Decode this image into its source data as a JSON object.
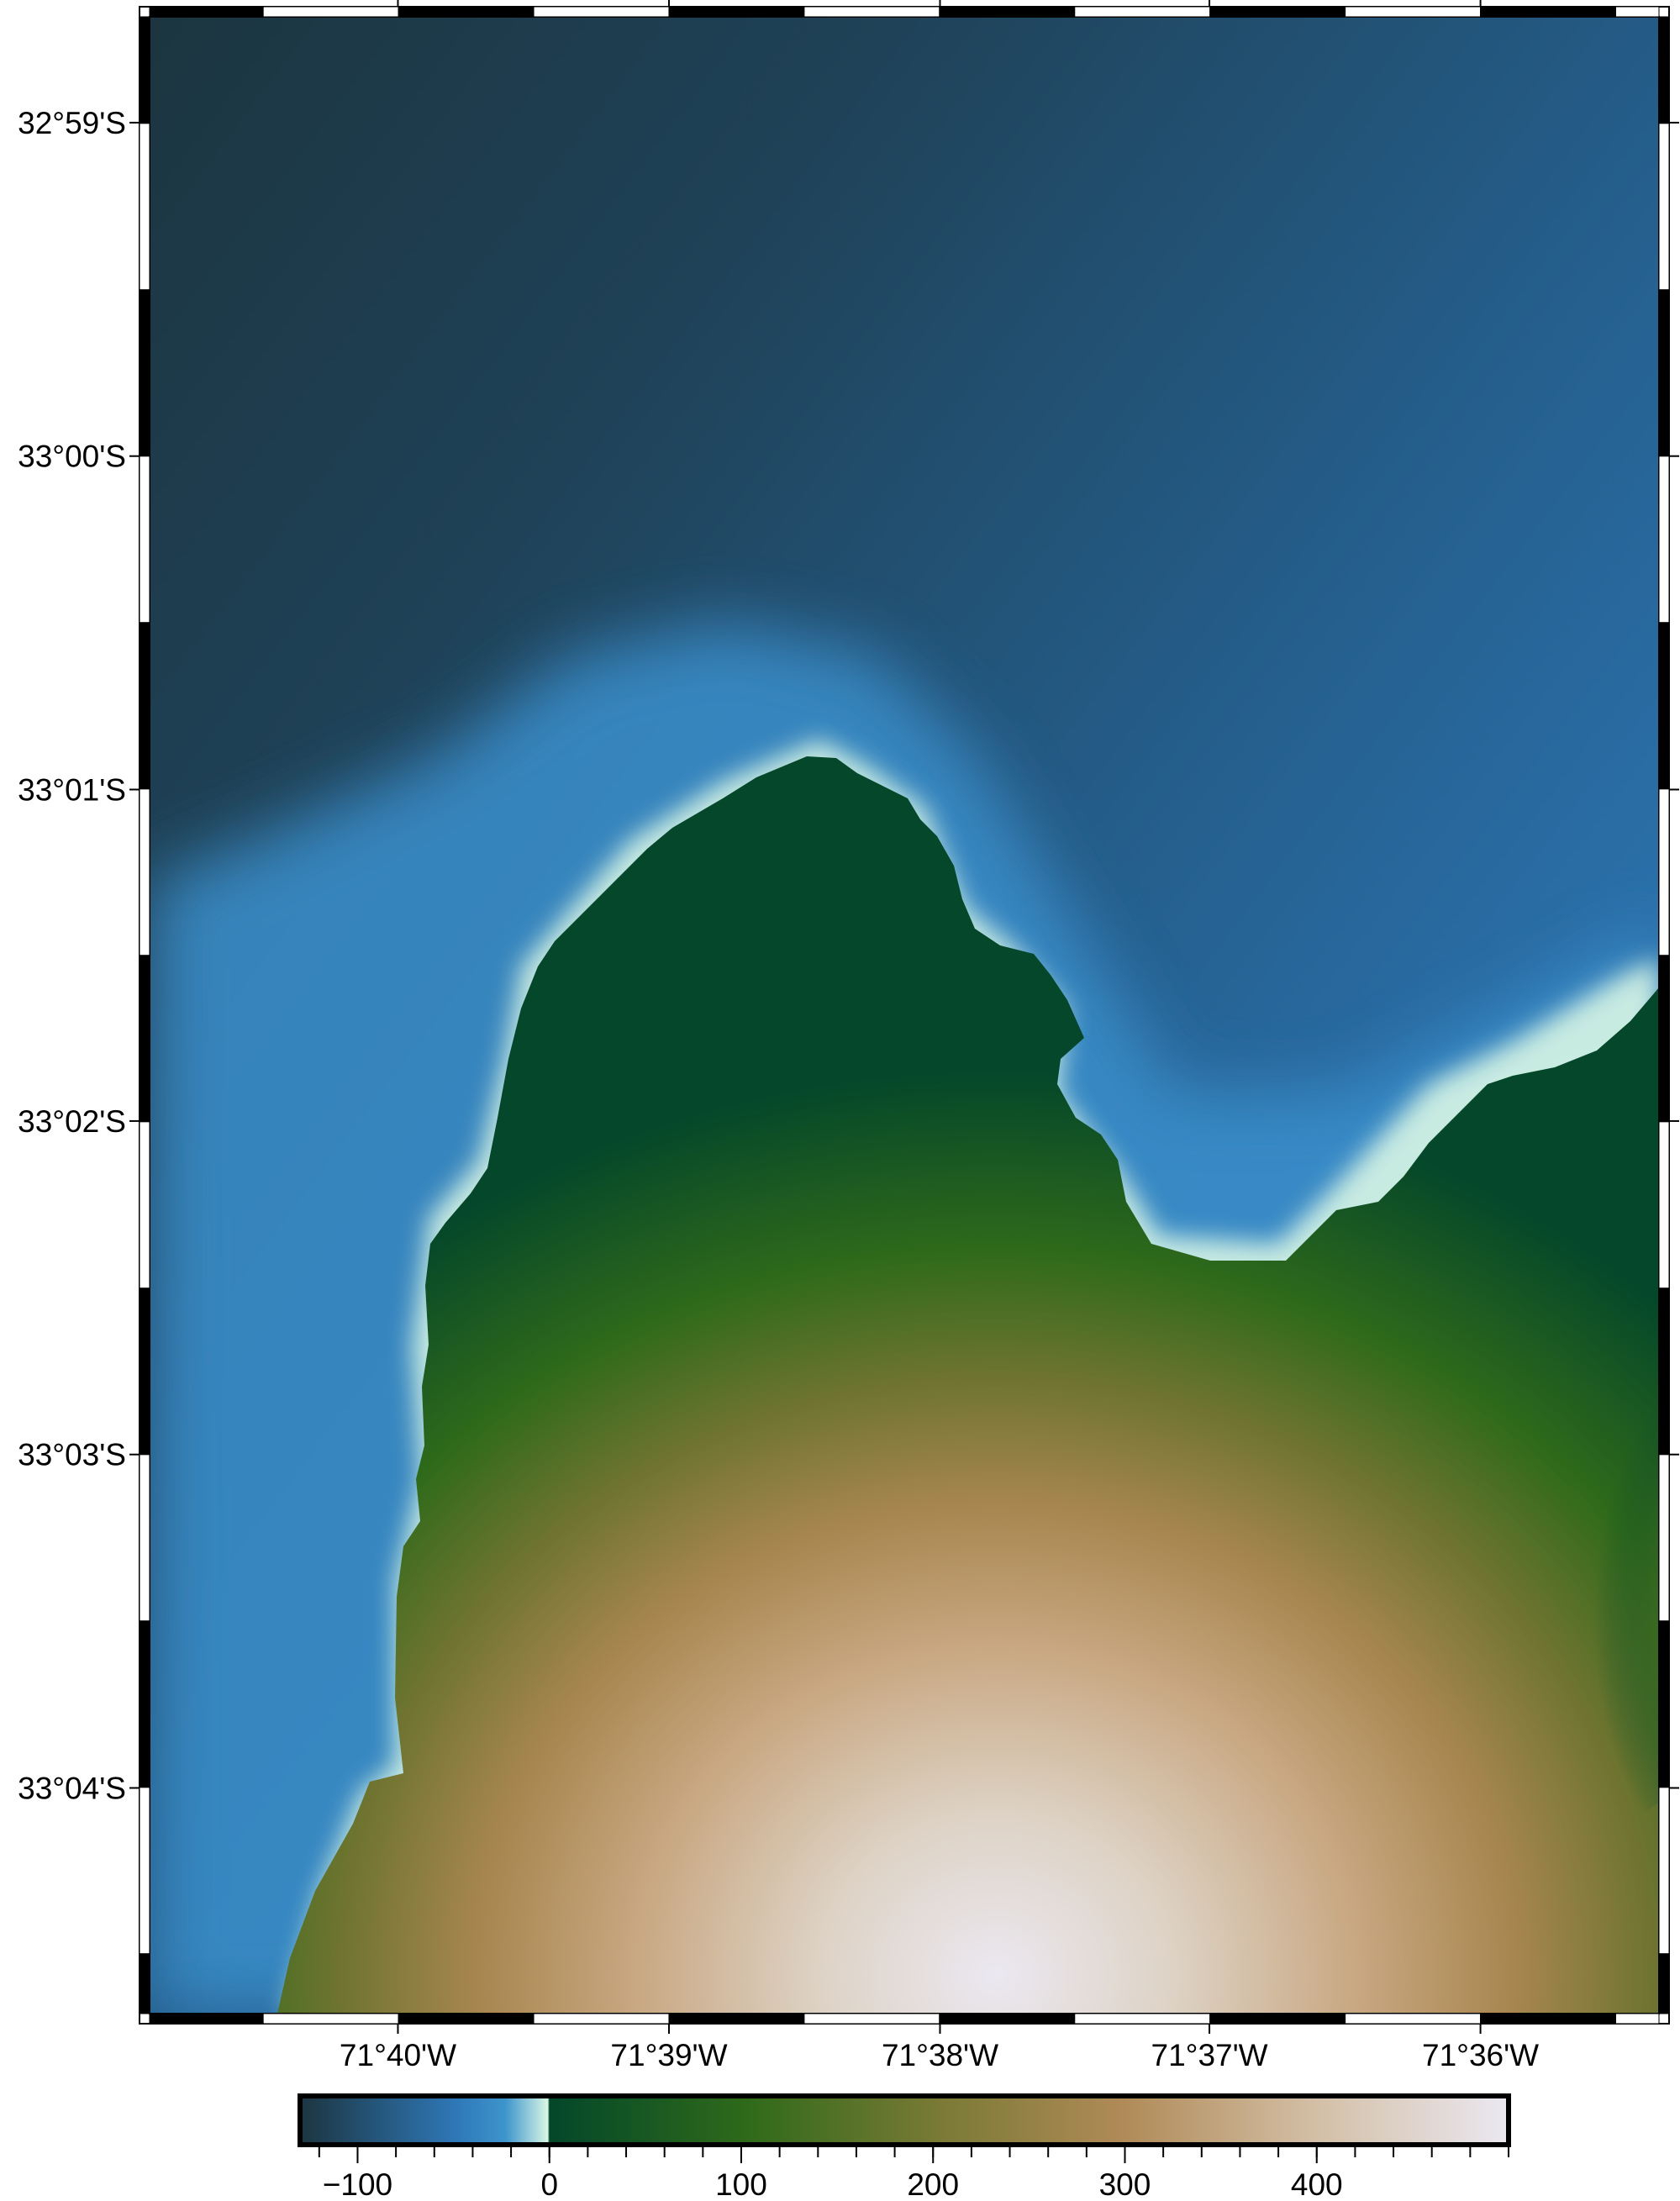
{
  "map": {
    "type": "topography-relief-map",
    "region": {
      "lon_min": -71.682,
      "lon_max": -71.589,
      "lat_min": -33.078,
      "lat_max": -32.978
    },
    "lat_ticks": [
      {
        "value": -32.9833,
        "label": "32°59'S"
      },
      {
        "value": -33.0,
        "label": "33°00'S"
      },
      {
        "value": -33.0167,
        "label": "33°01'S"
      },
      {
        "value": -33.0333,
        "label": "33°02'S"
      },
      {
        "value": -33.05,
        "label": "33°03'S"
      },
      {
        "value": -33.0667,
        "label": "33°04'S"
      }
    ],
    "lon_ticks": [
      {
        "value": -71.6667,
        "label": "71°40'W"
      },
      {
        "value": -71.65,
        "label": "71°39'W"
      },
      {
        "value": -71.6333,
        "label": "71°38'W"
      },
      {
        "value": -71.6167,
        "label": "71°37'W"
      },
      {
        "value": -71.6,
        "label": "71°36'W"
      }
    ],
    "frame_style": "checkered black and white border"
  },
  "colorbar": {
    "min": -130,
    "max": 500,
    "major_ticks": [
      {
        "value": -100,
        "label": "−100"
      },
      {
        "value": 0,
        "label": "0"
      },
      {
        "value": 100,
        "label": "100"
      },
      {
        "value": 200,
        "label": "200"
      },
      {
        "value": 300,
        "label": "300"
      },
      {
        "value": 400,
        "label": "400"
      }
    ],
    "minor_tick_step": 20,
    "colors": {
      "deep_water": "#1c3540",
      "mid_water": "#2e76b2",
      "shallow_water": "#3b8fcc",
      "shore": "#d8f6e5",
      "lowland": "#03472a",
      "green": "#2f6a1a",
      "olive": "#7a7a35",
      "tan": "#b08a57",
      "light_tan": "#d3b896",
      "peak": "#ebe8f1"
    }
  }
}
